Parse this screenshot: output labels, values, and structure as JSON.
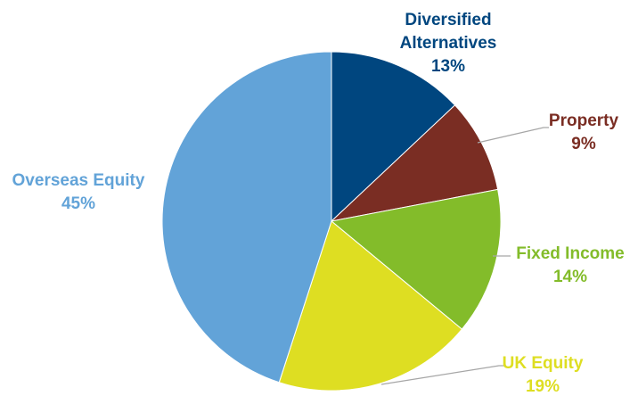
{
  "chart_data": {
    "type": "pie",
    "title": "",
    "start_angle_deg": 0,
    "direction": "clockwise",
    "slices": [
      {
        "label_lines": [
          "Diversified",
          "Alternatives"
        ],
        "value": 13,
        "value_label": "13%",
        "color": "#00467F",
        "label_color": "#00467F"
      },
      {
        "label_lines": [
          "Property"
        ],
        "value": 9,
        "value_label": "9%",
        "color": "#7A2D23",
        "label_color": "#7A2D23"
      },
      {
        "label_lines": [
          "Fixed Income"
        ],
        "value": 14,
        "value_label": "14%",
        "color": "#83BC2A",
        "label_color": "#83BC2A"
      },
      {
        "label_lines": [
          "UK Equity"
        ],
        "value": 19,
        "value_label": "19%",
        "color": "#DEDE22",
        "label_color": "#DEDE22"
      },
      {
        "label_lines": [
          "Overseas Equity"
        ],
        "value": 45,
        "value_label": "45%",
        "color": "#62A3D8",
        "label_color": "#62A3D8"
      }
    ],
    "legend": "none",
    "leader_line_color": "#A6A6A6"
  }
}
